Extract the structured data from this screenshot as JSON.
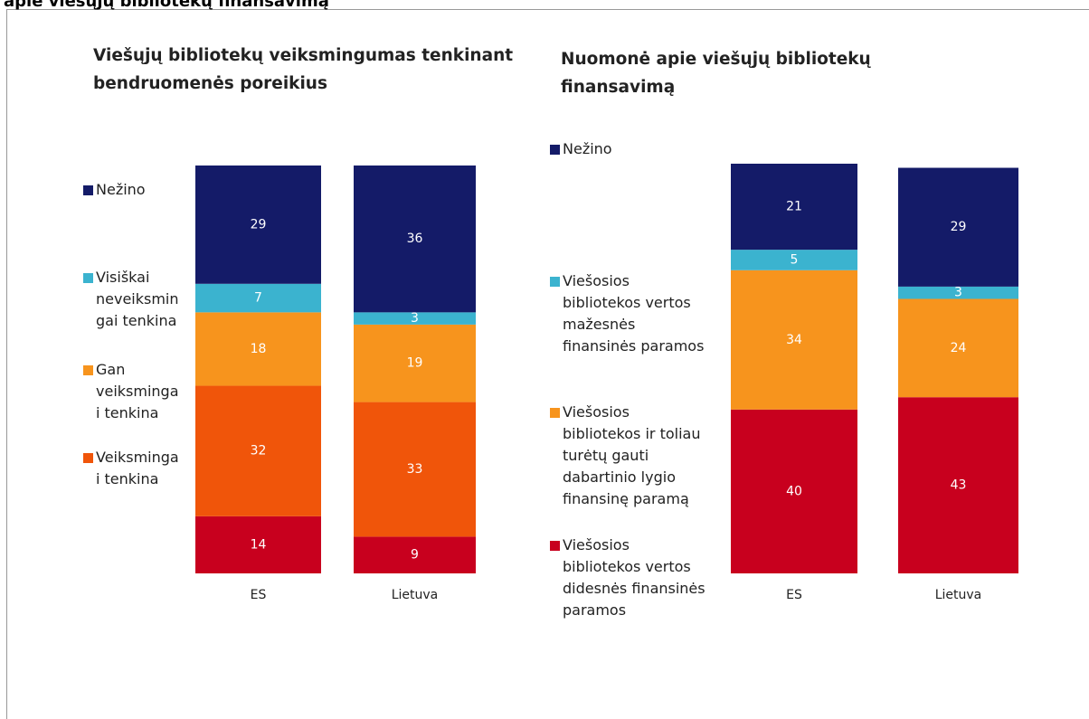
{
  "header": {
    "title": "apie viešųjų bibliotekų finansavimą"
  },
  "chart_data": [
    {
      "type": "stacked_bar",
      "title": "Viešųjų bibliotekų veiksmingumas tenkinant bendruomenės poreikius",
      "categories": [
        "ES",
        "Lietuva"
      ],
      "ylim": [
        0,
        100
      ],
      "series": [
        {
          "color": "#c8001e",
          "values": [
            14,
            9
          ]
        },
        {
          "name": "Veiksmingai tenkina",
          "color": "#f0550a",
          "values": [
            32,
            33
          ]
        },
        {
          "name": "Gan veiksmingai tenkina",
          "color": "#f7941d",
          "values": [
            18,
            19
          ]
        },
        {
          "name": "Visiškai neveiksmingai tenkina",
          "color": "#3bb3cf",
          "values": [
            7,
            3
          ]
        },
        {
          "name": "Nežino",
          "color": "#141b68",
          "values": [
            29,
            36
          ]
        }
      ]
    },
    {
      "type": "stacked_bar",
      "title": "Nuomonė apie viešųjų bibliotekų finansavimą",
      "categories": [
        "ES",
        "Lietuva"
      ],
      "ylim": [
        0,
        100
      ],
      "series": [
        {
          "name": "Viešosios bibliotekos vertos didesnės finansinės paramos",
          "color": "#c8001e",
          "values": [
            40,
            43
          ]
        },
        {
          "name": "Viešosios bibliotekos ir toliau turėtų gauti dabartinio lygio finansinę paramą",
          "color": "#f7941d",
          "values": [
            34,
            24
          ]
        },
        {
          "name": "Viešosios bibliotekos vertos mažesnės finansinės paramos",
          "color": "#3bb3cf",
          "values": [
            5,
            3
          ]
        },
        {
          "name": "Nežino",
          "color": "#141b68",
          "values": [
            21,
            29
          ]
        }
      ]
    }
  ]
}
